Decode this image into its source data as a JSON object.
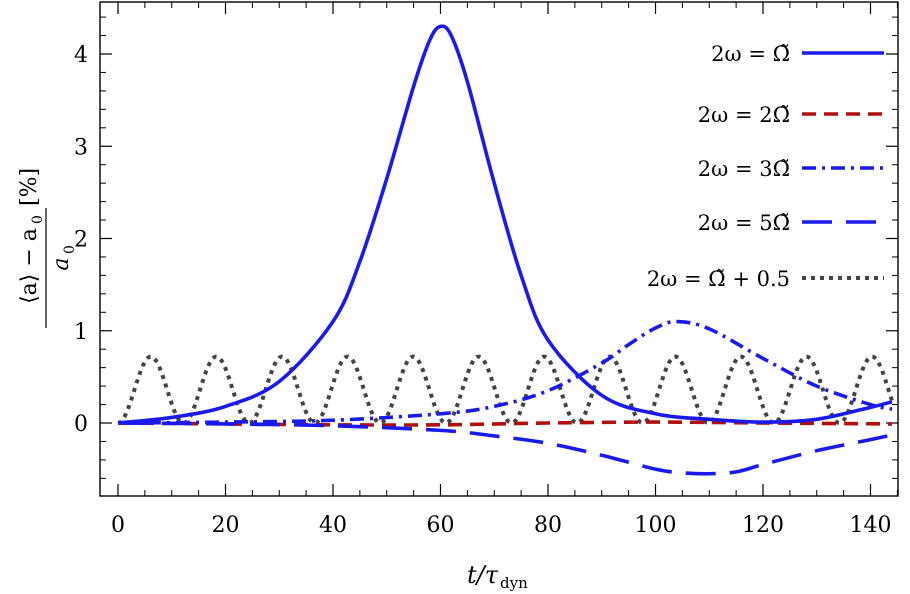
{
  "chart_data": {
    "type": "line",
    "xlabel": "t/τ",
    "xlabel_sub": "dyn",
    "ylabel": "⟨a⟩ − a",
    "ylabel_sub": "0",
    "ylabel_den": "a",
    "ylabel_den_sub": "0",
    "ylabel_unit": "[%]",
    "xlim": [
      -3,
      145
    ],
    "ylim": [
      -0.8,
      4.5
    ],
    "x_ticks": [
      0,
      20,
      40,
      60,
      80,
      100,
      120,
      140
    ],
    "y_ticks": [
      0,
      1,
      2,
      3,
      4
    ],
    "legend_position": "top-right",
    "series": [
      {
        "name": "2ω = Ω̃",
        "color": "#1a1aee",
        "style": "solid",
        "x": [
          0,
          10,
          20,
          30,
          40,
          45,
          50,
          55,
          58,
          60,
          62,
          65,
          70,
          75,
          80,
          90,
          100,
          110,
          120,
          130,
          140,
          144
        ],
        "y": [
          0,
          0.06,
          0.18,
          0.45,
          1.1,
          1.75,
          2.65,
          3.65,
          4.15,
          4.3,
          4.2,
          3.7,
          2.6,
          1.6,
          0.9,
          0.3,
          0.1,
          0.04,
          0.01,
          0.04,
          0.17,
          0.23
        ]
      },
      {
        "name": "2ω = 2Ω̃",
        "color": "#b01010",
        "style": "dashed",
        "x": [
          0,
          20,
          40,
          60,
          80,
          100,
          120,
          144
        ],
        "y": [
          0,
          -0.01,
          -0.02,
          -0.02,
          0,
          0.01,
          0,
          -0.01
        ]
      },
      {
        "name": "2ω = 3Ω̃",
        "color": "#1a1aee",
        "style": "dashdot",
        "x": [
          0,
          20,
          40,
          60,
          70,
          80,
          90,
          95,
          100,
          104,
          110,
          120,
          130,
          140,
          144
        ],
        "y": [
          0,
          0.01,
          0.03,
          0.1,
          0.18,
          0.35,
          0.65,
          0.85,
          1.03,
          1.1,
          1.02,
          0.7,
          0.4,
          0.2,
          0.15
        ]
      },
      {
        "name": "2ω = 5Ω̃",
        "color": "#1a1aee",
        "style": "longdash",
        "x": [
          0,
          20,
          40,
          60,
          70,
          80,
          90,
          100,
          105,
          110,
          115,
          120,
          130,
          140,
          144
        ],
        "y": [
          0,
          -0.01,
          -0.03,
          -0.08,
          -0.14,
          -0.22,
          -0.35,
          -0.5,
          -0.54,
          -0.55,
          -0.53,
          -0.45,
          -0.3,
          -0.18,
          -0.13
        ]
      },
      {
        "name": "2ω = Ω̃ + 0.5",
        "color": "#444444",
        "style": "dotted",
        "period": 12.2,
        "amplitude": 0.72
      }
    ]
  }
}
